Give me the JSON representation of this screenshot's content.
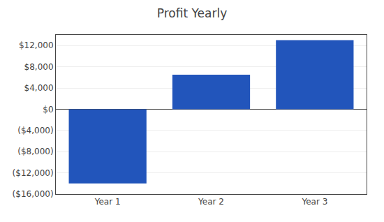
{
  "chart_data": {
    "type": "bar",
    "title": "Profit Yearly",
    "categories": [
      "Year 1",
      "Year 2",
      "Year 3"
    ],
    "values": [
      -14000,
      6500,
      13000
    ],
    "color": "#2255BB",
    "ylim": [
      -16000,
      14000
    ],
    "yticks": [
      {
        "value": -16000,
        "label": "($16,000)"
      },
      {
        "value": -12000,
        "label": "($12,000)"
      },
      {
        "value": -8000,
        "label": "($8,000)"
      },
      {
        "value": -4000,
        "label": "($4,000)"
      },
      {
        "value": 0,
        "label": "$0"
      },
      {
        "value": 4000,
        "label": "$4,000"
      },
      {
        "value": 8000,
        "label": "$8,000"
      },
      {
        "value": 12000,
        "label": "$12,000"
      }
    ],
    "grid": true
  }
}
